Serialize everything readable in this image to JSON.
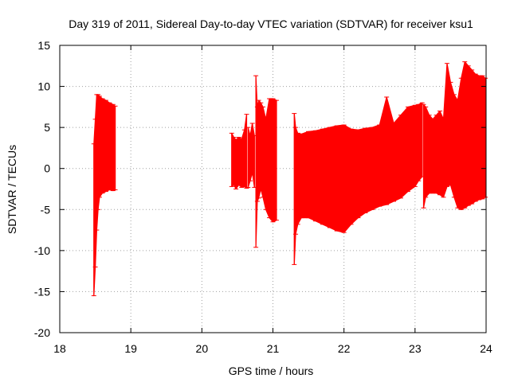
{
  "chart_data": {
    "type": "error-bar",
    "title": "Day 319 of 2011, Sidereal Day-to-day VTEC variation (SDTVAR) for receiver ksu1",
    "xlabel": "GPS time / hours",
    "ylabel": "SDTVAR / TECUs",
    "xlim": [
      18,
      24
    ],
    "ylim": [
      -20,
      15
    ],
    "xticks": [
      18,
      19,
      20,
      21,
      22,
      23,
      24
    ],
    "yticks": [
      -20,
      -15,
      -10,
      -5,
      0,
      5,
      10,
      15
    ],
    "grid": true,
    "series": [
      {
        "name": "SDTVAR",
        "color": "#ff0000",
        "segments": [
          {
            "x": [
              18.48,
              18.5,
              18.52,
              18.54,
              18.56,
              18.6,
              18.65,
              18.7,
              18.75,
              18.78
            ],
            "low": [
              -15.5,
              -12.0,
              -7.5,
              -5.0,
              -3.5,
              -3.0,
              -2.8,
              -2.6,
              -2.7,
              -2.6
            ],
            "high": [
              3.0,
              6.0,
              9.0,
              9.0,
              8.8,
              8.5,
              8.3,
              8.0,
              7.8,
              7.6
            ]
          },
          {
            "x": [
              20.42,
              20.45,
              20.48,
              20.52,
              20.56,
              20.6,
              20.63
            ],
            "low": [
              -2.2,
              -2.0,
              -2.5,
              -2.0,
              -2.3,
              -2.2,
              -2.4
            ],
            "high": [
              4.3,
              3.8,
              3.5,
              3.8,
              3.6,
              4.7,
              6.6
            ]
          },
          {
            "x": [
              20.65,
              20.68,
              20.71,
              20.74
            ],
            "low": [
              -2.3,
              -1.5,
              -0.5,
              -2.3
            ],
            "high": [
              5.0,
              4.0,
              5.5,
              4.0
            ]
          },
          {
            "x": [
              20.76,
              20.78,
              20.8,
              20.83,
              20.86,
              20.9,
              20.95,
              21.0,
              21.05
            ],
            "low": [
              -9.6,
              -4.0,
              -3.6,
              -2.5,
              -3.5,
              -5.0,
              -6.0,
              -6.5,
              -6.3
            ],
            "high": [
              11.3,
              7.5,
              8.3,
              8.0,
              7.5,
              6.0,
              8.5,
              8.5,
              8.3
            ]
          },
          {
            "x": [
              21.3,
              21.32,
              21.35,
              21.4,
              21.5,
              21.6,
              21.7,
              21.8,
              21.9,
              22.0,
              22.1,
              22.2,
              22.3,
              22.4,
              22.5,
              22.6,
              22.7,
              22.8,
              22.9,
              23.0,
              23.05,
              23.1
            ],
            "low": [
              -11.7,
              -8.0,
              -6.8,
              -6.0,
              -6.0,
              -6.4,
              -6.8,
              -7.2,
              -7.6,
              -7.8,
              -6.8,
              -6.0,
              -5.4,
              -5.0,
              -4.6,
              -4.4,
              -4.0,
              -3.6,
              -2.8,
              -2.2,
              -1.5,
              -1.0
            ],
            "high": [
              6.7,
              5.0,
              4.3,
              4.2,
              4.5,
              4.6,
              4.8,
              5.0,
              5.2,
              5.3,
              4.8,
              4.7,
              4.9,
              5.0,
              5.3,
              8.7,
              5.5,
              6.5,
              7.5,
              7.7,
              7.8,
              8.0
            ]
          },
          {
            "x": [
              23.12,
              23.15,
              23.2,
              23.25,
              23.3,
              23.35,
              23.4,
              23.45,
              23.5,
              23.55,
              23.6,
              23.65,
              23.7,
              23.75,
              23.8,
              23.85,
              23.9,
              23.95,
              23.99
            ],
            "low": [
              -4.8,
              -3.5,
              -3.0,
              -3.0,
              -3.0,
              -3.2,
              -3.5,
              -2.2,
              -2.0,
              -3.5,
              -4.8,
              -5.0,
              -4.8,
              -4.5,
              -4.3,
              -4.0,
              -3.8,
              -3.7,
              -3.5
            ],
            "high": [
              7.8,
              7.5,
              6.5,
              6.0,
              6.5,
              7.0,
              6.0,
              12.8,
              10.5,
              9.0,
              8.3,
              11.0,
              13.0,
              12.5,
              12.0,
              11.5,
              11.3,
              11.3,
              11.0
            ]
          }
        ]
      }
    ]
  }
}
